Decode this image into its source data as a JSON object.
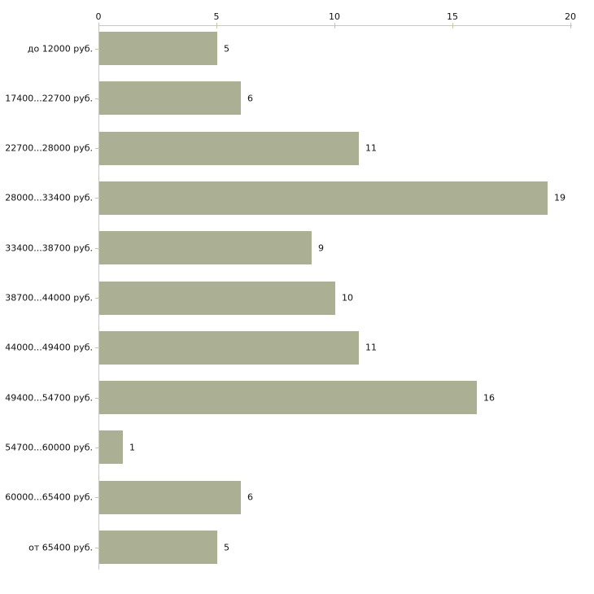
{
  "chart_data": {
    "type": "bar",
    "orientation": "horizontal",
    "title": "",
    "xlabel": "",
    "ylabel": "",
    "categories": [
      "до 12000 руб.",
      "17400...22700 руб.",
      "22700...28000 руб.",
      "28000...33400 руб.",
      "33400...38700 руб.",
      "38700...44000 руб.",
      "44000...49400 руб.",
      "49400...54700 руб.",
      "54700...60000 руб.",
      "60000...65400 руб.",
      "от 65400 руб."
    ],
    "values": [
      5,
      6,
      11,
      19,
      9,
      10,
      11,
      16,
      1,
      6,
      5
    ],
    "x_ticks": [
      "0",
      "5",
      "10",
      "15",
      "20"
    ],
    "x_tick_values": [
      0,
      5,
      10,
      15,
      20
    ],
    "xlim": [
      0,
      20
    ],
    "grid": false,
    "legend": "none",
    "value_labels_shown": true,
    "colors": {
      "bar": "#abaf93",
      "axis": "#c8c8c8",
      "tick": "#c8c8a0",
      "text": "#111111",
      "background": "#ffffff"
    }
  }
}
